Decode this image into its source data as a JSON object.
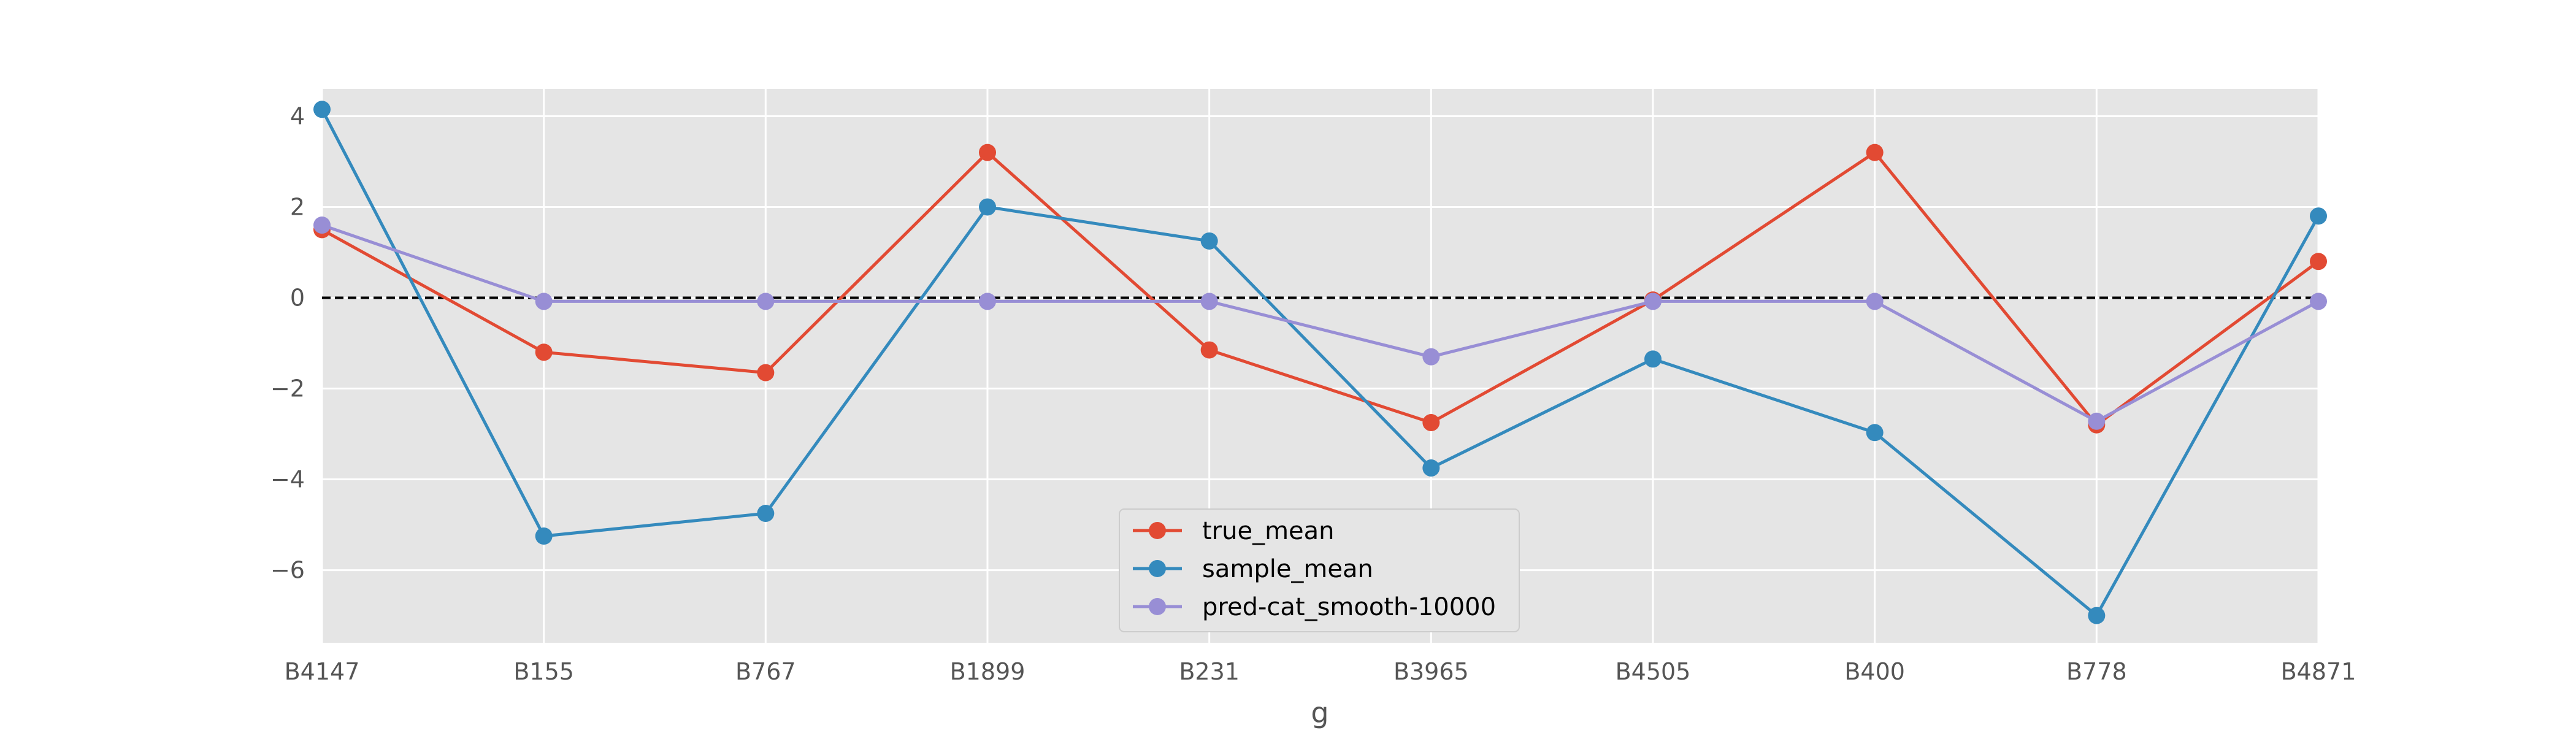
{
  "chart_data": {
    "type": "line",
    "title": "",
    "xlabel": "g",
    "ylabel": "",
    "categories": [
      "B4147",
      "B155",
      "B767",
      "B1899",
      "B231",
      "B3965",
      "B4505",
      "B400",
      "B778",
      "B4871"
    ],
    "ylim": [
      -7.6,
      4.6
    ],
    "yticks": [
      4,
      2,
      0,
      -2,
      -4,
      -6
    ],
    "ytick_labels": [
      "4",
      "2",
      "0",
      "−2",
      "−4",
      "−6"
    ],
    "grid": true,
    "style": "ggplot",
    "reference_line": {
      "y": 0,
      "style": "dashed",
      "color": "#000000"
    },
    "legend_position": "lower center",
    "series": [
      {
        "name": "true_mean",
        "color": "#E24A33",
        "values": [
          1.5,
          -1.2,
          -1.65,
          3.2,
          -1.15,
          -2.75,
          -0.05,
          3.2,
          -2.8,
          0.8
        ]
      },
      {
        "name": "sample_mean",
        "color": "#348ABD",
        "values": [
          4.15,
          -5.25,
          -4.75,
          2.0,
          1.25,
          -3.75,
          -1.35,
          -2.97,
          -7.0,
          1.8
        ]
      },
      {
        "name": "pred-cat_smooth-10000",
        "color": "#988ED5",
        "values": [
          1.6,
          -0.08,
          -0.08,
          -0.08,
          -0.08,
          -1.3,
          -0.08,
          -0.08,
          -2.72,
          -0.08
        ]
      }
    ]
  }
}
